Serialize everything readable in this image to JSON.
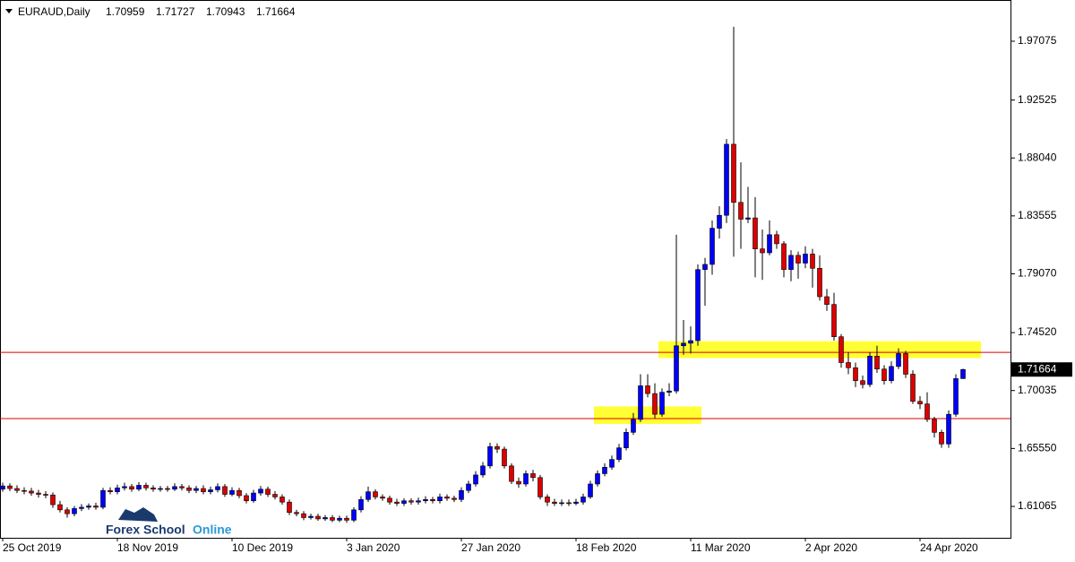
{
  "chart_data": {
    "type": "candlestick",
    "title": "EURAUD,Daily",
    "watermark": [
      "Forex School",
      "Online"
    ],
    "categories": [
      "25 Oct 2019",
      null,
      null,
      null,
      null,
      null,
      null,
      null,
      null,
      null,
      null,
      null,
      null,
      null,
      null,
      null,
      "18 Nov 2019",
      null,
      null,
      null,
      null,
      null,
      null,
      null,
      null,
      null,
      null,
      null,
      null,
      null,
      null,
      null,
      "10 Dec 2019",
      null,
      null,
      null,
      null,
      null,
      null,
      null,
      null,
      null,
      null,
      null,
      null,
      null,
      null,
      null,
      "3 Jan 2020",
      null,
      null,
      null,
      null,
      null,
      null,
      null,
      null,
      null,
      null,
      null,
      null,
      null,
      null,
      null,
      "27 Jan 2020",
      null,
      null,
      null,
      null,
      null,
      null,
      null,
      null,
      null,
      null,
      null,
      null,
      null,
      null,
      null,
      "18 Feb 2020",
      null,
      null,
      null,
      null,
      null,
      null,
      null,
      null,
      null,
      null,
      null,
      null,
      null,
      null,
      null,
      "11 Mar 2020",
      null,
      null,
      null,
      null,
      null,
      null,
      null,
      null,
      null,
      null,
      null,
      null,
      null,
      null,
      null,
      "2 Apr 2020",
      null,
      null,
      null,
      null,
      null,
      null,
      null,
      null,
      null,
      null,
      null,
      null,
      null,
      null,
      null,
      "24 Apr 2020",
      null,
      null,
      null,
      null,
      null,
      null
    ],
    "open": [
      1.624,
      1.6265,
      1.6245,
      1.623,
      1.6225,
      1.621,
      1.62,
      1.6195,
      1.612,
      1.608,
      1.605,
      1.609,
      1.61,
      1.611,
      1.61,
      1.623,
      1.622,
      1.625,
      1.626,
      1.624,
      1.627,
      1.625,
      1.624,
      1.6245,
      1.624,
      1.626,
      1.625,
      1.623,
      1.6245,
      1.622,
      1.6235,
      1.626,
      1.62,
      1.623,
      1.619,
      1.615,
      1.621,
      1.624,
      1.62,
      1.618,
      1.614,
      1.606,
      1.605,
      1.602,
      1.603,
      1.601,
      1.602,
      1.6,
      1.6015,
      1.6,
      1.608,
      1.616,
      1.622,
      1.618,
      1.617,
      1.614,
      1.613,
      1.615,
      1.614,
      1.615,
      1.616,
      1.615,
      1.618,
      1.617,
      1.616,
      1.623,
      1.628,
      1.635,
      1.642,
      1.657,
      1.655,
      1.642,
      1.63,
      1.628,
      1.636,
      1.633,
      1.618,
      1.614,
      1.613,
      1.6135,
      1.613,
      1.614,
      1.618,
      1.628,
      1.636,
      1.641,
      1.647,
      1.656,
      1.668,
      1.678,
      1.704,
      1.698,
      1.682,
      1.699,
      1.7,
      1.735,
      1.737,
      1.739,
      1.794,
      1.798,
      1.826,
      1.836,
      1.891,
      1.846,
      1.833,
      1.834,
      1.81,
      1.807,
      1.821,
      1.814,
      1.794,
      1.805,
      1.799,
      1.806,
      1.795,
      1.773,
      1.767,
      1.742,
      1.722,
      1.718,
      1.708,
      1.705,
      1.727,
      1.717,
      1.708,
      1.719,
      1.729,
      1.713,
      1.692,
      1.69,
      1.678,
      1.668,
      1.659,
      1.682,
      1.70959
    ],
    "high": [
      1.629,
      1.6285,
      1.627,
      1.6255,
      1.625,
      1.6235,
      1.6225,
      1.6215,
      1.615,
      1.61,
      1.611,
      1.6125,
      1.613,
      1.6135,
      1.625,
      1.6255,
      1.6275,
      1.629,
      1.628,
      1.6295,
      1.629,
      1.627,
      1.6265,
      1.6265,
      1.6285,
      1.628,
      1.627,
      1.6265,
      1.627,
      1.626,
      1.6285,
      1.628,
      1.6255,
      1.625,
      1.621,
      1.6235,
      1.6265,
      1.626,
      1.6225,
      1.62,
      1.616,
      1.608,
      1.607,
      1.605,
      1.605,
      1.604,
      1.604,
      1.6035,
      1.6035,
      1.61,
      1.6185,
      1.626,
      1.624,
      1.62,
      1.619,
      1.6165,
      1.617,
      1.617,
      1.6175,
      1.6185,
      1.618,
      1.6205,
      1.62,
      1.619,
      1.6255,
      1.6305,
      1.638,
      1.645,
      1.66,
      1.6595,
      1.657,
      1.644,
      1.633,
      1.6385,
      1.639,
      1.635,
      1.62,
      1.6165,
      1.616,
      1.616,
      1.6165,
      1.6205,
      1.6305,
      1.6385,
      1.644,
      1.65,
      1.659,
      1.671,
      1.683,
      1.713,
      1.713,
      1.706,
      1.702,
      1.706,
      1.821,
      1.755,
      1.75,
      1.798,
      1.803,
      1.832,
      1.843,
      1.895,
      1.9819,
      1.877,
      1.858,
      1.85,
      1.825,
      1.832,
      1.824,
      1.816,
      1.809,
      1.808,
      1.812,
      1.81,
      1.805,
      1.779,
      1.776,
      1.744,
      1.73,
      1.722,
      1.712,
      1.73,
      1.735,
      1.72,
      1.723,
      1.733,
      1.731,
      1.716,
      1.696,
      1.699,
      1.68,
      1.67,
      1.685,
      1.713,
      1.71727
    ],
    "low": [
      1.622,
      1.6225,
      1.621,
      1.62,
      1.619,
      1.6175,
      1.617,
      1.6095,
      1.606,
      1.602,
      1.603,
      1.607,
      1.608,
      1.608,
      1.6085,
      1.62,
      1.62,
      1.623,
      1.622,
      1.6225,
      1.623,
      1.622,
      1.622,
      1.622,
      1.6225,
      1.623,
      1.621,
      1.621,
      1.62,
      1.62,
      1.6215,
      1.618,
      1.6185,
      1.617,
      1.613,
      1.6135,
      1.619,
      1.618,
      1.616,
      1.612,
      1.604,
      1.603,
      1.6,
      1.6005,
      1.5995,
      1.5995,
      1.5985,
      1.5985,
      1.598,
      1.5985,
      1.606,
      1.614,
      1.616,
      1.615,
      1.612,
      1.611,
      1.611,
      1.612,
      1.612,
      1.613,
      1.613,
      1.613,
      1.615,
      1.614,
      1.614,
      1.621,
      1.626,
      1.633,
      1.64,
      1.652,
      1.64,
      1.628,
      1.625,
      1.626,
      1.63,
      1.616,
      1.611,
      1.611,
      1.611,
      1.611,
      1.6115,
      1.612,
      1.6165,
      1.626,
      1.634,
      1.639,
      1.645,
      1.654,
      1.666,
      1.676,
      1.695,
      1.679,
      1.68,
      1.696,
      1.698,
      1.728,
      1.729,
      1.735,
      1.766,
      1.79,
      1.818,
      1.83,
      1.804,
      1.81,
      1.83,
      1.788,
      1.786,
      1.805,
      1.81,
      1.788,
      1.785,
      1.787,
      1.795,
      1.78,
      1.77,
      1.762,
      1.739,
      1.718,
      1.713,
      1.703,
      1.702,
      1.703,
      1.714,
      1.705,
      1.706,
      1.717,
      1.71,
      1.69,
      1.686,
      1.676,
      1.664,
      1.656,
      1.656,
      1.68,
      1.70943
    ],
    "close": [
      1.6265,
      1.6245,
      1.623,
      1.6225,
      1.621,
      1.62,
      1.6195,
      1.612,
      1.608,
      1.605,
      1.609,
      1.61,
      1.611,
      1.61,
      1.623,
      1.622,
      1.625,
      1.626,
      1.624,
      1.627,
      1.625,
      1.624,
      1.6245,
      1.624,
      1.626,
      1.625,
      1.623,
      1.6245,
      1.622,
      1.6235,
      1.626,
      1.62,
      1.623,
      1.619,
      1.615,
      1.621,
      1.624,
      1.62,
      1.618,
      1.614,
      1.606,
      1.605,
      1.602,
      1.603,
      1.601,
      1.602,
      1.6,
      1.6015,
      1.6,
      1.608,
      1.616,
      1.622,
      1.618,
      1.617,
      1.614,
      1.613,
      1.615,
      1.614,
      1.615,
      1.616,
      1.615,
      1.618,
      1.617,
      1.616,
      1.623,
      1.628,
      1.635,
      1.642,
      1.657,
      1.655,
      1.642,
      1.63,
      1.628,
      1.636,
      1.633,
      1.618,
      1.614,
      1.613,
      1.6135,
      1.613,
      1.614,
      1.618,
      1.628,
      1.636,
      1.641,
      1.647,
      1.656,
      1.668,
      1.678,
      1.704,
      1.698,
      1.682,
      1.699,
      1.7,
      1.735,
      1.737,
      1.739,
      1.794,
      1.798,
      1.826,
      1.836,
      1.891,
      1.846,
      1.833,
      1.834,
      1.81,
      1.807,
      1.821,
      1.814,
      1.794,
      1.805,
      1.799,
      1.806,
      1.795,
      1.773,
      1.767,
      1.742,
      1.722,
      1.718,
      1.708,
      1.705,
      1.727,
      1.717,
      1.708,
      1.719,
      1.729,
      1.713,
      1.692,
      1.69,
      1.678,
      1.668,
      1.659,
      1.682,
      1.7096,
      1.71664
    ],
    "up_color": "#0000ff",
    "down_color": "#dd0000",
    "wick_color": "#000000",
    "hlines": [
      1.7299,
      1.6786
    ],
    "hline_color": "#dd0000",
    "zones": [
      {
        "low": 1.7255,
        "high": 1.7385,
        "start": 92,
        "end": 137
      },
      {
        "low": 1.6745,
        "high": 1.688,
        "start": 83,
        "end": 98
      }
    ],
    "zone_color": "#ffff33",
    "ylim": [
      1.58636,
      2.00267
    ],
    "yticks": [
      1.61065,
      {
        "value": 1.6555,
        "label": "1.65550"
      },
      1.70035,
      {
        "value": 1.7452,
        "label": "1.74520"
      },
      {
        "value": 1.7907,
        "label": "1.79070"
      },
      1.83555,
      {
        "value": 1.8804,
        "label": "1.88040"
      },
      1.92525,
      1.97075
    ],
    "grid": false
  }
}
